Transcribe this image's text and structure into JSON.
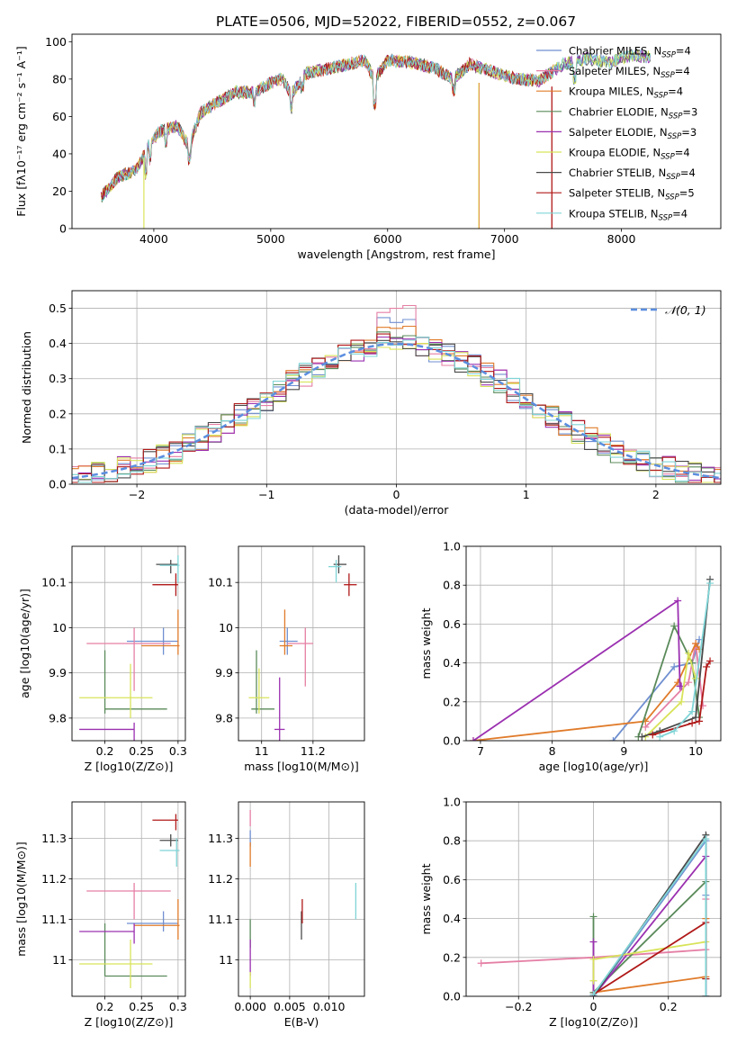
{
  "title": "PLATE=0506, MJD=52022, FIBERID=0552, z=0.067",
  "series_names": [
    "Chabrier MILES",
    "Salpeter MILES",
    "Kroupa MILES",
    "Chabrier ELODIE",
    "Salpeter ELODIE",
    "Kroupa ELODIE",
    "Chabrier STELIB",
    "Salpeter STELIB",
    "Kroupa STELIB"
  ],
  "nssp": [
    4,
    4,
    4,
    3,
    3,
    4,
    4,
    5,
    4
  ],
  "colors": [
    "#6f8fd0",
    "#e57fa5",
    "#e07b2a",
    "#5a8a5a",
    "#9b30b0",
    "#d8e35a",
    "#4a4a4a",
    "#b01818",
    "#7fd4d6"
  ],
  "chart_data": [
    {
      "panel": "spectrum",
      "type": "line",
      "title": "PLATE=0506, MJD=52022, FIBERID=0552, z=0.067",
      "xlabel": "wavelength [Angstrom, rest frame]",
      "ylabel": "Flux [fλ10⁻¹⁷ erg cm⁻² s⁻¹ A⁻¹]",
      "xlim": [
        3300,
        8850
      ],
      "ylim": [
        0,
        104
      ],
      "xticks": [
        4000,
        5000,
        6000,
        7000,
        8000
      ],
      "yticks": [
        0,
        20,
        40,
        60,
        80,
        100
      ],
      "legend": "top-right",
      "x": [
        3550,
        3700,
        3850,
        3950,
        4050,
        4200,
        4300,
        4400,
        4500,
        4700,
        4860,
        5000,
        5100,
        5175,
        5300,
        5450,
        5600,
        5800,
        5890,
        6000,
        6200,
        6400,
        6563,
        6700,
        6900,
        7100,
        7300,
        7500,
        7700,
        7900,
        8100,
        8300
      ],
      "y": [
        17,
        28,
        31,
        44,
        52,
        55,
        44,
        62,
        66,
        73,
        73,
        78,
        80,
        72,
        83,
        85,
        87,
        90,
        80,
        90,
        89,
        86,
        80,
        88,
        84,
        80,
        79,
        88,
        91,
        89,
        93,
        91
      ]
    },
    {
      "panel": "residuals",
      "type": "line",
      "xlabel": "(data-model)/error",
      "ylabel": "Normed distribution",
      "xlim": [
        -2.5,
        2.5
      ],
      "ylim": [
        0,
        0.55
      ],
      "xticks": [
        -2,
        -1,
        0,
        1,
        2
      ],
      "yticks": [
        0.0,
        0.1,
        0.2,
        0.3,
        0.4,
        0.5
      ],
      "legend": "top-right",
      "legend_label": "𝒩(0, 1)",
      "x": [
        -2.5,
        -2.0,
        -1.5,
        -1.0,
        -0.5,
        0.0,
        0.5,
        1.0,
        1.5,
        2.0,
        2.5
      ],
      "y": [
        0.018,
        0.054,
        0.13,
        0.242,
        0.352,
        0.399,
        0.352,
        0.242,
        0.13,
        0.054,
        0.018
      ],
      "histogram_peaks": [
        0.48,
        0.52,
        0.45,
        0.44,
        0.42,
        0.41,
        0.4,
        0.43,
        0.39
      ]
    },
    {
      "panel": "age-vs-Z",
      "type": "scatter",
      "xlabel": "Z [log10(Z/Z⊙)]",
      "ylabel": "age [log10(age/yr)]",
      "xlim": [
        0.155,
        0.31
      ],
      "ylim": [
        9.75,
        10.18
      ],
      "xticks": [
        0.2,
        0.25,
        0.3
      ],
      "yticks": [
        9.8,
        9.9,
        10.0,
        10.1
      ],
      "points": [
        {
          "x": 0.28,
          "y": 9.97,
          "xerr": [
            0.23,
            0.3
          ],
          "yerr": [
            9.94,
            10.0
          ]
        },
        {
          "x": 0.24,
          "y": 9.965,
          "xerr": [
            0.175,
            0.29
          ],
          "yerr": [
            9.86,
            10.0
          ]
        },
        {
          "x": 0.3,
          "y": 9.96,
          "xerr": [
            0.25,
            0.302
          ],
          "yerr": [
            9.94,
            10.04
          ]
        },
        {
          "x": 0.2,
          "y": 9.82,
          "xerr": [
            0.2,
            0.285
          ],
          "yerr": [
            9.81,
            9.95
          ]
        },
        {
          "x": 0.24,
          "y": 9.775,
          "xerr": [
            0.165,
            0.24
          ],
          "yerr": [
            9.74,
            9.79
          ]
        },
        {
          "x": 0.235,
          "y": 9.845,
          "xerr": [
            0.165,
            0.265
          ],
          "yerr": [
            9.8,
            9.92
          ]
        },
        {
          "x": 0.29,
          "y": 10.14,
          "xerr": [
            0.27,
            0.3
          ],
          "yerr": [
            10.12,
            10.15
          ]
        },
        {
          "x": 0.297,
          "y": 10.095,
          "xerr": [
            0.265,
            0.3
          ],
          "yerr": [
            10.07,
            10.12
          ]
        },
        {
          "x": 0.3,
          "y": 10.138,
          "xerr": [
            0.275,
            0.302
          ],
          "yerr": [
            10.1,
            10.16
          ]
        }
      ]
    },
    {
      "panel": "age-vs-mass",
      "type": "scatter",
      "xlabel": "mass [log10(M/M⊙)]",
      "ylabel": "",
      "xlim": [
        10.91,
        11.4
      ],
      "ylim": [
        9.75,
        10.18
      ],
      "xticks": [
        11.0,
        11.2
      ],
      "yticks": [
        9.8,
        9.9,
        10.0,
        10.1
      ],
      "points": [
        {
          "x": 11.1,
          "y": 9.97,
          "xerr": [
            11.07,
            11.14
          ],
          "yerr": [
            9.94,
            10.0
          ]
        },
        {
          "x": 11.17,
          "y": 9.965,
          "xerr": [
            11.1,
            11.2
          ],
          "yerr": [
            9.87,
            10.0
          ]
        },
        {
          "x": 11.09,
          "y": 9.96,
          "xerr": [
            11.07,
            11.12
          ],
          "yerr": [
            9.94,
            10.04
          ]
        },
        {
          "x": 10.98,
          "y": 9.82,
          "xerr": [
            10.96,
            11.05
          ],
          "yerr": [
            9.81,
            9.95
          ]
        },
        {
          "x": 11.07,
          "y": 9.775,
          "xerr": [
            11.05,
            11.09
          ],
          "yerr": [
            9.75,
            9.89
          ]
        },
        {
          "x": 10.99,
          "y": 9.845,
          "xerr": [
            10.95,
            11.03
          ],
          "yerr": [
            9.81,
            9.91
          ]
        },
        {
          "x": 11.3,
          "y": 10.14,
          "xerr": [
            11.28,
            11.33
          ],
          "yerr": [
            10.12,
            10.16
          ]
        },
        {
          "x": 11.34,
          "y": 10.095,
          "xerr": [
            11.32,
            11.37
          ],
          "yerr": [
            10.07,
            10.12
          ]
        },
        {
          "x": 11.29,
          "y": 10.135,
          "xerr": [
            11.26,
            11.31
          ],
          "yerr": [
            10.1,
            10.15
          ]
        }
      ]
    },
    {
      "panel": "mass-weight-vs-age",
      "type": "line",
      "xlabel": "age [log10(age/yr)]",
      "ylabel": "mass weight",
      "xlim": [
        6.8,
        10.35
      ],
      "ylim": [
        0,
        1
      ],
      "xticks": [
        7,
        8,
        9,
        10
      ],
      "yticks": [
        0.0,
        0.2,
        0.4,
        0.6,
        0.8,
        1.0
      ],
      "series": [
        {
          "name": "Chabrier MILES",
          "x": [
            8.85,
            9.7,
            9.95,
            10.05
          ],
          "y": [
            0.0,
            0.38,
            0.4,
            0.52
          ]
        },
        {
          "name": "Salpeter MILES",
          "x": [
            9.3,
            9.9,
            10.0,
            10.1
          ],
          "y": [
            0.07,
            0.3,
            0.5,
            0.18
          ]
        },
        {
          "name": "Kroupa MILES",
          "x": [
            6.9,
            9.3,
            9.75,
            10.0,
            10.05
          ],
          "y": [
            0.0,
            0.1,
            0.3,
            0.5,
            0.47
          ]
        },
        {
          "name": "Chabrier ELODIE",
          "x": [
            9.2,
            9.7,
            9.95,
            10.05
          ],
          "y": [
            0.02,
            0.59,
            0.4,
            0.12
          ]
        },
        {
          "name": "Salpeter ELODIE",
          "x": [
            6.9,
            9.75,
            9.78,
            9.8
          ],
          "y": [
            0.0,
            0.72,
            0.28,
            0.28
          ]
        },
        {
          "name": "Kroupa ELODIE",
          "x": [
            9.3,
            9.8,
            9.9,
            10.0
          ],
          "y": [
            0.02,
            0.2,
            0.45,
            0.32
          ]
        },
        {
          "name": "Chabrier STELIB",
          "x": [
            9.25,
            9.5,
            10.0,
            10.2
          ],
          "y": [
            0.02,
            0.05,
            0.12,
            0.83
          ]
        },
        {
          "name": "Salpeter STELIB",
          "x": [
            9.4,
            9.95,
            10.05,
            10.15,
            10.2
          ],
          "y": [
            0.03,
            0.09,
            0.1,
            0.38,
            0.41
          ]
        },
        {
          "name": "Kroupa STELIB",
          "x": [
            9.5,
            9.7,
            9.95,
            10.2
          ],
          "y": [
            0.02,
            0.05,
            0.15,
            0.81
          ]
        }
      ]
    },
    {
      "panel": "mass-vs-Z",
      "type": "scatter",
      "xlabel": "Z [log10(Z/Z⊙)]",
      "ylabel": "mass [log10(M/M⊙)]",
      "xlim": [
        0.155,
        0.31
      ],
      "ylim": [
        10.91,
        11.39
      ],
      "xticks": [
        0.2,
        0.25,
        0.3
      ],
      "yticks": [
        11.0,
        11.1,
        11.2,
        11.3
      ],
      "points": [
        {
          "x": 0.28,
          "y": 11.09,
          "xerr": [
            0.23,
            0.3
          ],
          "yerr": [
            11.07,
            11.12
          ]
        },
        {
          "x": 0.24,
          "y": 11.17,
          "xerr": [
            0.175,
            0.29
          ],
          "yerr": [
            11.1,
            11.19
          ]
        },
        {
          "x": 0.3,
          "y": 11.085,
          "xerr": [
            0.24,
            0.302
          ],
          "yerr": [
            11.05,
            11.15
          ]
        },
        {
          "x": 0.2,
          "y": 10.96,
          "xerr": [
            0.2,
            0.285
          ],
          "yerr": [
            10.96,
            11.09
          ]
        },
        {
          "x": 0.24,
          "y": 11.07,
          "xerr": [
            0.165,
            0.24
          ],
          "yerr": [
            11.04,
            11.09
          ]
        },
        {
          "x": 0.235,
          "y": 10.99,
          "xerr": [
            0.165,
            0.265
          ],
          "yerr": [
            10.93,
            11.05
          ]
        },
        {
          "x": 0.29,
          "y": 11.295,
          "xerr": [
            0.275,
            0.3
          ],
          "yerr": [
            11.28,
            11.31
          ]
        },
        {
          "x": 0.297,
          "y": 11.345,
          "xerr": [
            0.265,
            0.3
          ],
          "yerr": [
            11.32,
            11.36
          ]
        },
        {
          "x": 0.298,
          "y": 11.27,
          "xerr": [
            0.275,
            0.302
          ],
          "yerr": [
            11.23,
            11.3
          ]
        }
      ]
    },
    {
      "panel": "mass-vs-EBV",
      "type": "scatter",
      "xlabel": "E(B-V)",
      "ylabel": "",
      "xlim": [
        -0.0015,
        0.0145
      ],
      "ylim": [
        10.91,
        11.39
      ],
      "xticks": [
        0.0,
        0.005,
        0.01
      ],
      "yticks": [
        11.0,
        11.1,
        11.2,
        11.3
      ],
      "points": [
        {
          "x": 0.0,
          "y": 11.3,
          "yerr": [
            11.28,
            11.32
          ]
        },
        {
          "x": 0.0,
          "y": 11.35,
          "yerr": [
            11.33,
            11.37
          ]
        },
        {
          "x": 0.0,
          "y": 11.26,
          "yerr": [
            11.23,
            11.29
          ]
        },
        {
          "x": 0.0,
          "y": 11.07,
          "yerr": [
            11.03,
            11.1
          ]
        },
        {
          "x": 0.0,
          "y": 11.0,
          "yerr": [
            10.96,
            11.05
          ]
        },
        {
          "x": 0.0,
          "y": 10.95,
          "yerr": [
            10.93,
            10.97
          ]
        },
        {
          "x": 0.0065,
          "y": 11.09,
          "yerr": [
            11.05,
            11.12
          ]
        },
        {
          "x": 0.0066,
          "y": 11.12,
          "yerr": [
            11.09,
            11.15
          ]
        },
        {
          "x": 0.0134,
          "y": 11.14,
          "yerr": [
            11.1,
            11.19
          ]
        }
      ]
    },
    {
      "panel": "mass-weight-vs-Z",
      "type": "line",
      "xlabel": "Z [log10(Z/Z⊙)]",
      "ylabel": "mass weight",
      "xlim": [
        -0.34,
        0.34
      ],
      "ylim": [
        0,
        1
      ],
      "xticks": [
        -0.2,
        0.0,
        0.2
      ],
      "yticks": [
        0.0,
        0.2,
        0.4,
        0.6,
        0.8,
        1.0
      ],
      "series": [
        {
          "name": "Chabrier MILES",
          "x": [
            0.0,
            0.3,
            0.3
          ],
          "y": [
            0.0,
            0.8,
            0.52
          ]
        },
        {
          "name": "Salpeter MILES",
          "x": [
            -0.3,
            0.0,
            0.3,
            0.3
          ],
          "y": [
            0.17,
            0.2,
            0.24,
            0.5
          ]
        },
        {
          "name": "Kroupa MILES",
          "x": [
            0.0,
            0.3,
            0.3
          ],
          "y": [
            0.02,
            0.1,
            0.4
          ]
        },
        {
          "name": "Chabrier ELODIE",
          "x": [
            0.0,
            0.0,
            0.3,
            0.3
          ],
          "y": [
            0.41,
            0.02,
            0.59,
            0.0
          ]
        },
        {
          "name": "Salpeter ELODIE",
          "x": [
            0.0,
            0.0,
            0.3,
            0.3
          ],
          "y": [
            0.28,
            0.0,
            0.72,
            0.0
          ]
        },
        {
          "name": "Kroupa ELODIE",
          "x": [
            0.0,
            0.0,
            0.3
          ],
          "y": [
            0.08,
            0.19,
            0.28
          ]
        },
        {
          "name": "Chabrier STELIB",
          "x": [
            0.0,
            0.3,
            0.3
          ],
          "y": [
            0.0,
            0.83,
            0.09
          ]
        },
        {
          "name": "Salpeter STELIB",
          "x": [
            0.0,
            0.3,
            0.3
          ],
          "y": [
            0.01,
            0.38,
            0.09
          ]
        },
        {
          "name": "Kroupa STELIB",
          "x": [
            0.0,
            0.3,
            0.3
          ],
          "y": [
            0.01,
            0.81,
            0.0
          ]
        }
      ]
    }
  ]
}
